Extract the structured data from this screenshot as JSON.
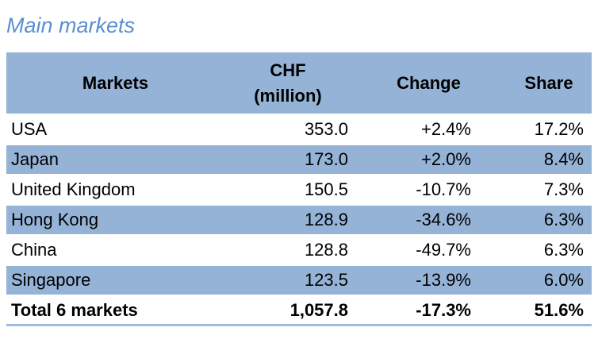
{
  "title": "Main markets",
  "header": {
    "markets": "Markets",
    "chf_line1": "CHF",
    "chf_line2": "(million)",
    "change": "Change",
    "share": "Share"
  },
  "rows": [
    {
      "market": "USA",
      "chf": "353.0",
      "change": "+2.4%",
      "share": "17.2%"
    },
    {
      "market": "Japan",
      "chf": "173.0",
      "change": "+2.0%",
      "share": "8.4%"
    },
    {
      "market": "United Kingdom",
      "chf": "150.5",
      "change": "-10.7%",
      "share": "7.3%"
    },
    {
      "market": "Hong Kong",
      "chf": "128.9",
      "change": "-34.6%",
      "share": "6.3%"
    },
    {
      "market": "China",
      "chf": "128.8",
      "change": "-49.7%",
      "share": "6.3%"
    },
    {
      "market": "Singapore",
      "chf": "123.5",
      "change": "-13.9%",
      "share": "6.0%"
    }
  ],
  "total": {
    "market": "Total 6 markets",
    "chf": "1,057.8",
    "change": "-17.3%",
    "share": "51.6%"
  },
  "colors": {
    "title": "#5b8fd0",
    "shaded_row": "#95b3d7"
  }
}
